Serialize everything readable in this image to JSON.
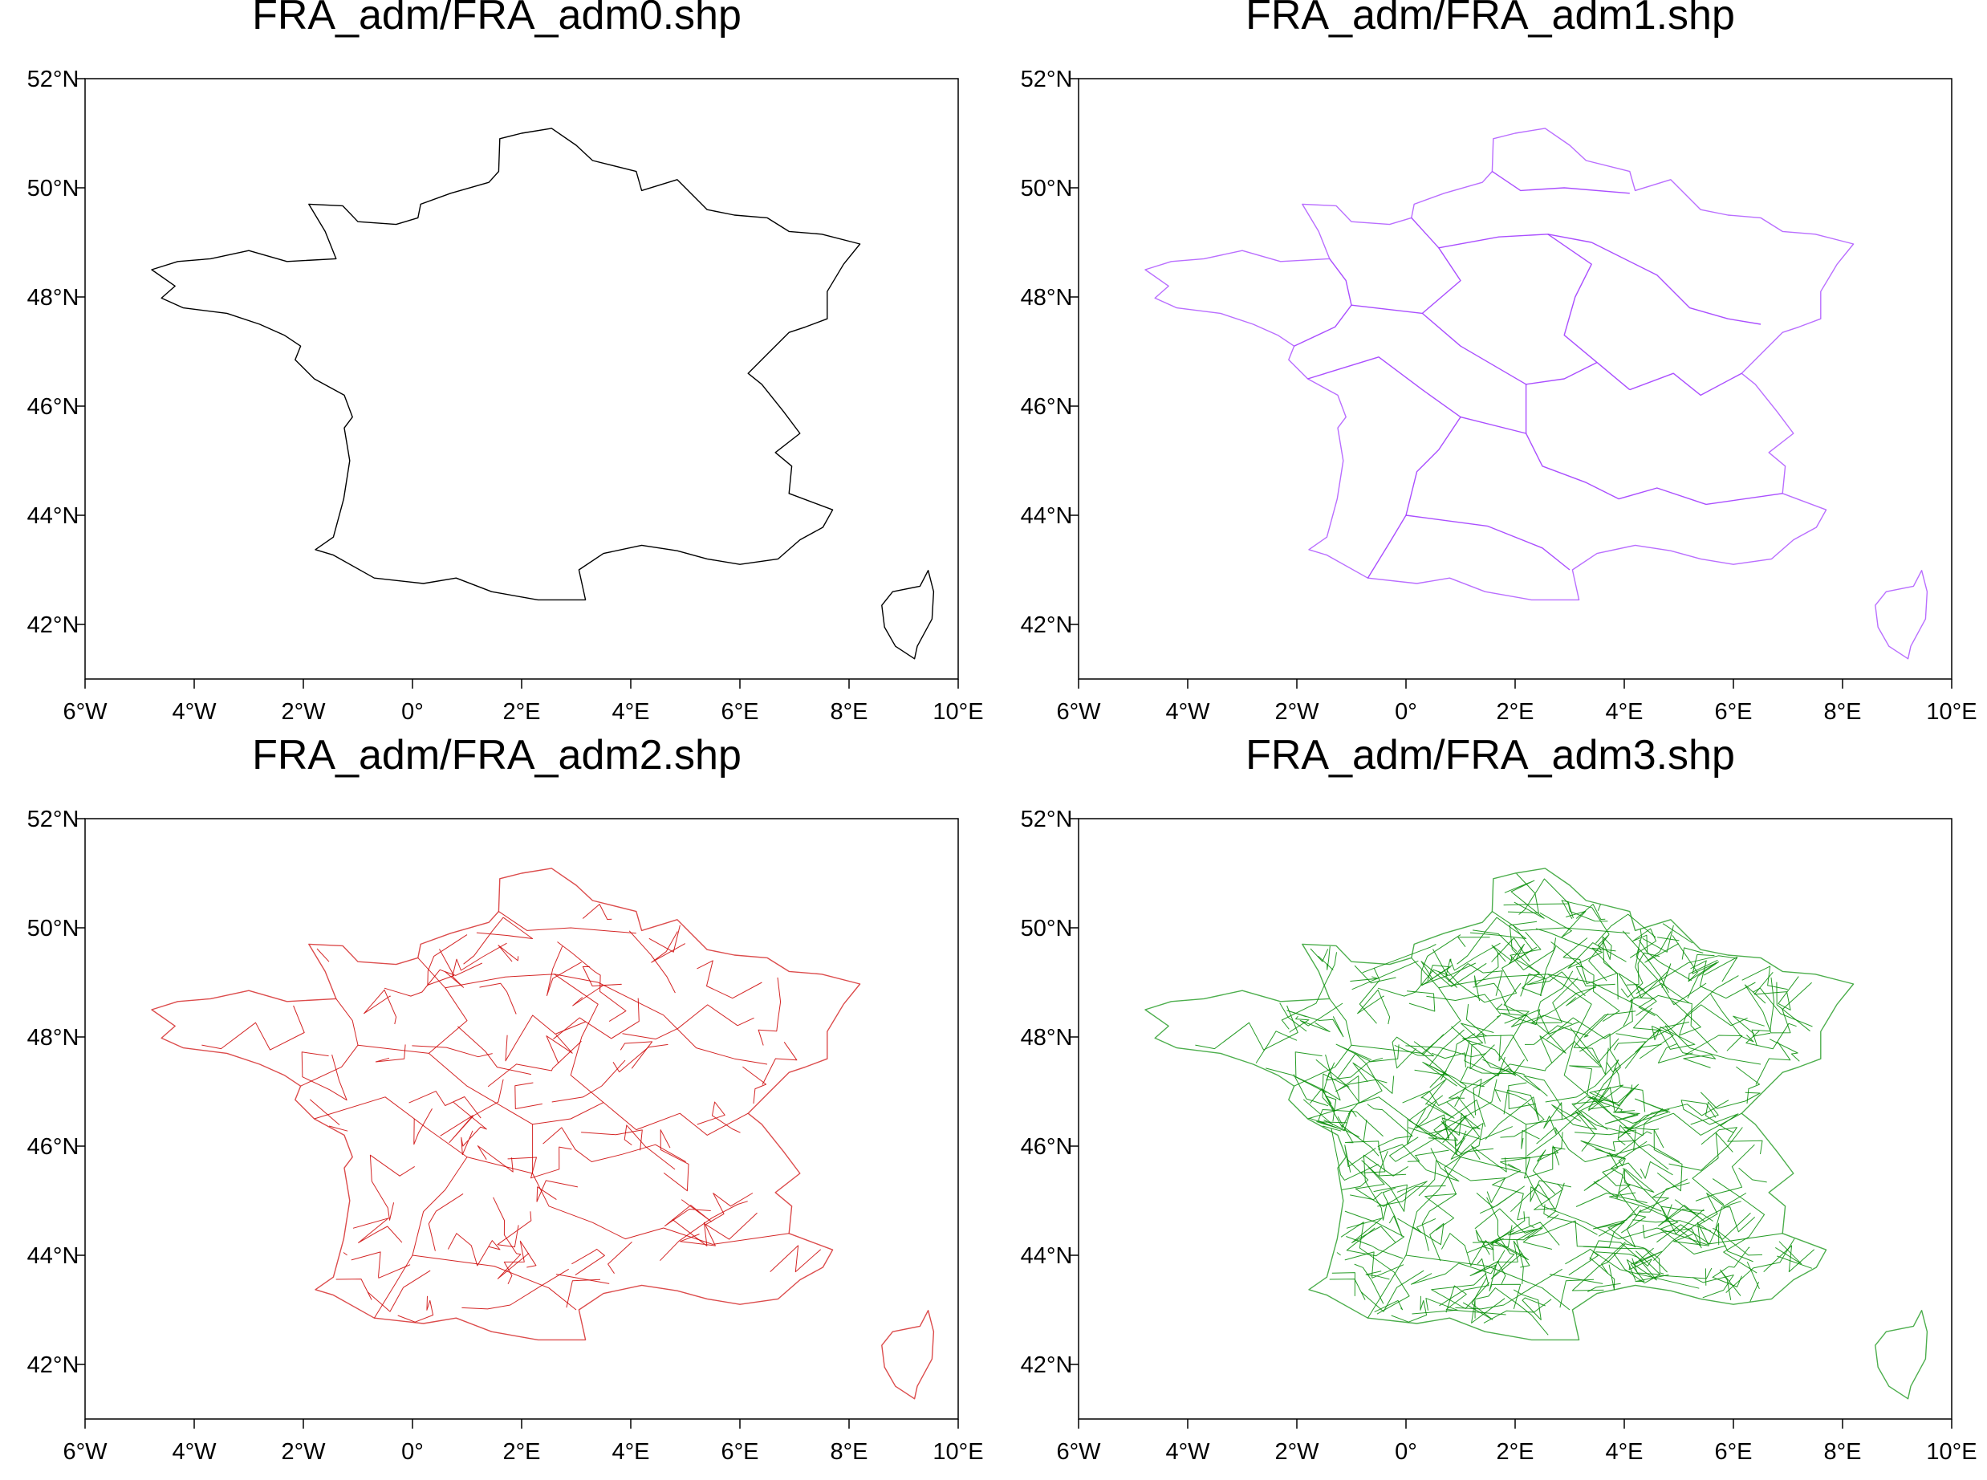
{
  "panels": [
    {
      "id": "p0",
      "title": "FRA_adm/FRA_adm0.shp",
      "color": "#000000",
      "level": 0
    },
    {
      "id": "p1",
      "title": "FRA_adm/FRA_adm1.shp",
      "color": "#9b30ff",
      "level": 1
    },
    {
      "id": "p2",
      "title": "FRA_adm/FRA_adm2.shp",
      "color": "#cd0000",
      "level": 2
    },
    {
      "id": "p3",
      "title": "FRA_adm/FRA_adm3.shp",
      "color": "#008b00",
      "level": 3
    }
  ],
  "map": {
    "lon_range": [
      -6,
      10
    ],
    "lat_range": [
      41,
      52
    ],
    "lon_ticks": [
      "6°W",
      "4°W",
      "2°W",
      "0°",
      "2°E",
      "4°E",
      "6°E",
      "8°E",
      "10°E"
    ],
    "lat_ticks": [
      "42°N",
      "44°N",
      "46°N",
      "48°N",
      "50°N",
      "52°N"
    ]
  }
}
